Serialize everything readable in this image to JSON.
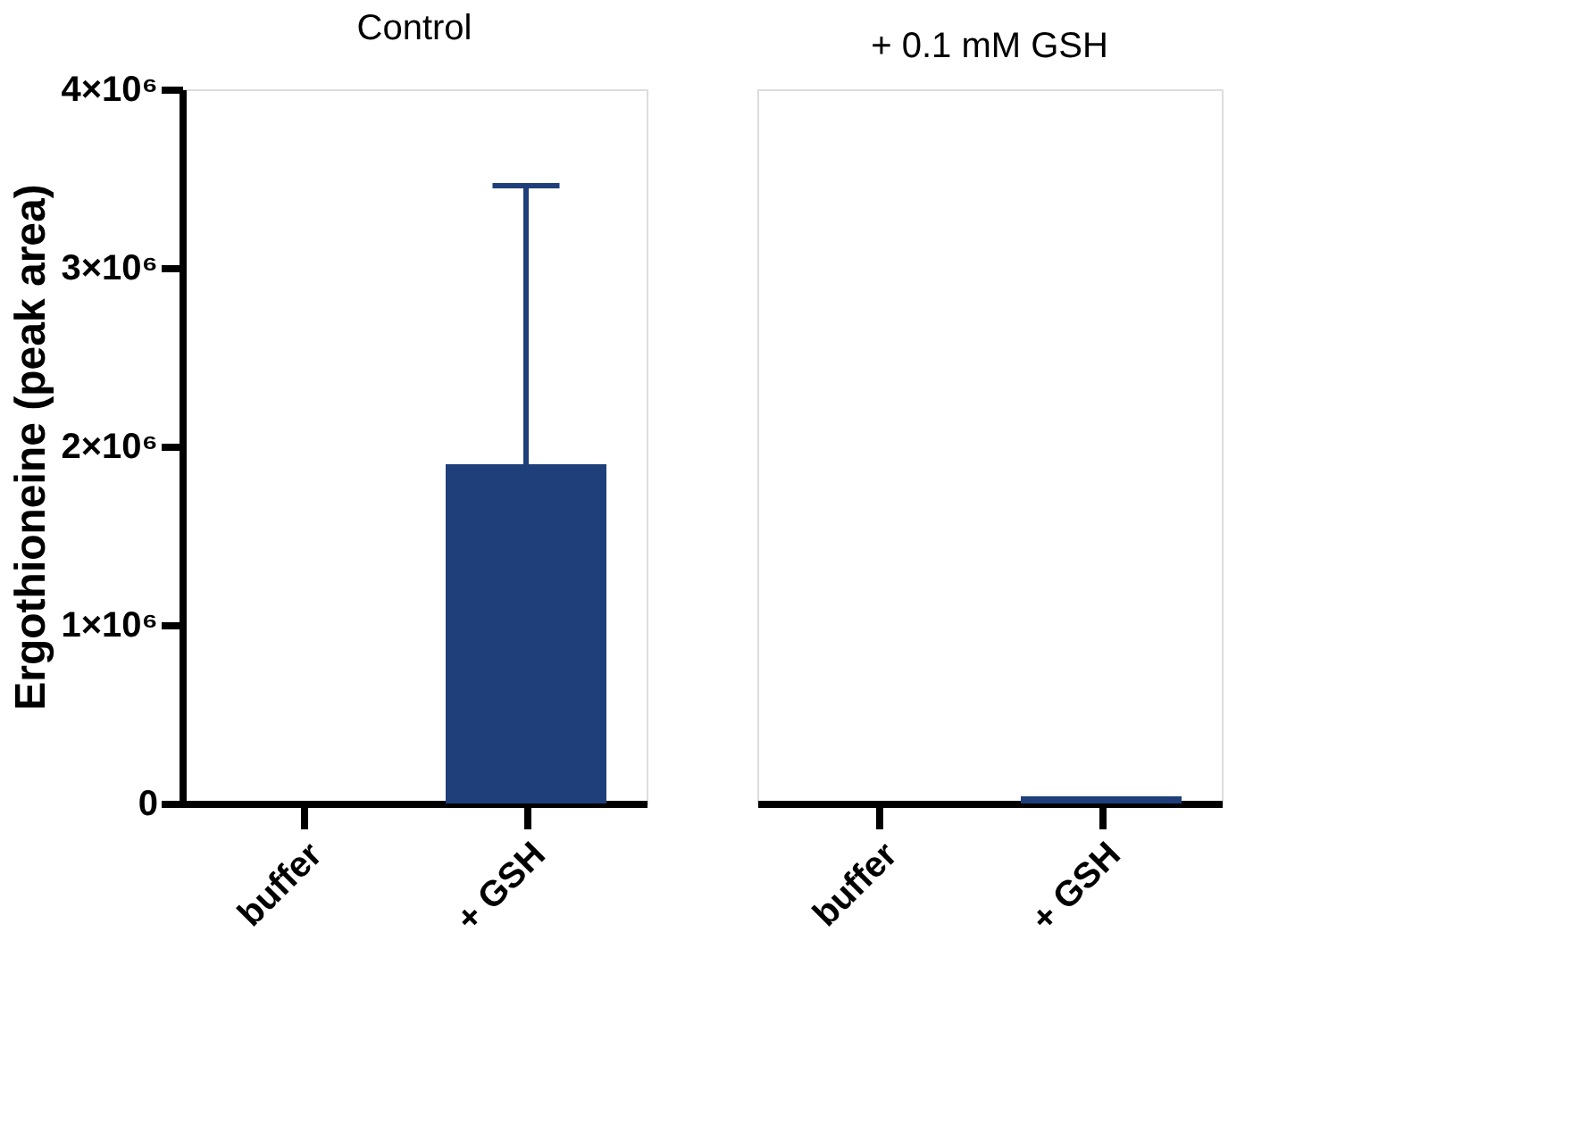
{
  "chart_data": [
    {
      "type": "bar",
      "title": "Control",
      "ylabel": "Ergothioneine (peak area)",
      "categories": [
        "buffer",
        "+ GSH"
      ],
      "values": [
        0,
        1900000
      ],
      "errors": [
        null,
        [
          1900000,
          3460000
        ]
      ],
      "color": "#1f3f7a",
      "ylim": [
        0,
        4000000
      ],
      "yticks": [
        {
          "value": 0,
          "label": "0"
        },
        {
          "value": 1000000,
          "label": "1×10⁶"
        },
        {
          "value": 2000000,
          "label": "2×10⁶"
        },
        {
          "value": 3000000,
          "label": "3×10⁶"
        },
        {
          "value": 4000000,
          "label": "4×10⁶"
        }
      ],
      "grid": false
    },
    {
      "type": "bar",
      "title": "+ 0.1 mM GSH",
      "categories": [
        "buffer",
        "+ GSH"
      ],
      "values": [
        0,
        40000
      ],
      "color": "#1f3f7a",
      "ylim": [
        0,
        4000000
      ],
      "tick_labels": "x",
      "grid": false
    }
  ]
}
